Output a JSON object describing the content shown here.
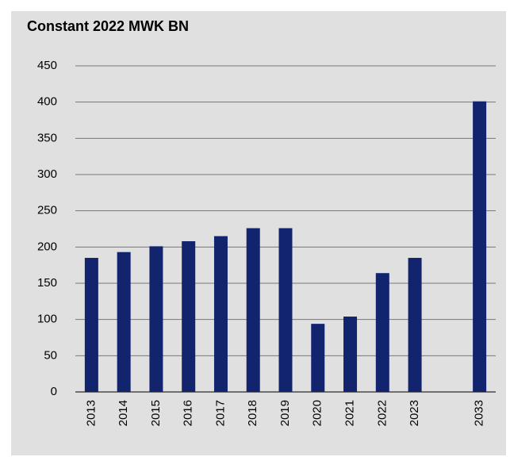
{
  "chart_data": {
    "type": "bar",
    "title": "Constant 2022 MWK BN",
    "categories": [
      "2013",
      "2014",
      "2015",
      "2016",
      "2017",
      "2018",
      "2019",
      "2020",
      "2021",
      "2022",
      "2023",
      null,
      "2033"
    ],
    "values": [
      185,
      193,
      201,
      208,
      215,
      226,
      226,
      94,
      104,
      164,
      185,
      null,
      401
    ],
    "color": "#13246f",
    "ylim": [
      0,
      450
    ],
    "yticks": [
      0,
      50,
      100,
      150,
      200,
      250,
      300,
      350,
      400,
      450
    ],
    "grid": true
  }
}
